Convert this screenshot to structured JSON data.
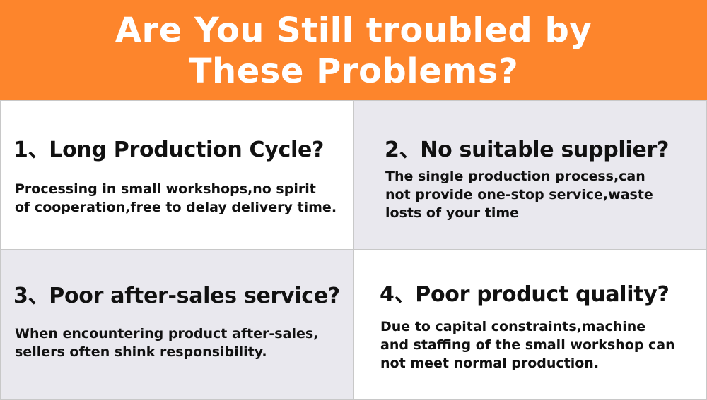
{
  "header": {
    "title": "Are You Still troubled by\nThese Problems?"
  },
  "colors": {
    "banner": "#fd852c",
    "cell_light": "#ffffff",
    "cell_gray": "#e9e8ee"
  },
  "problems": [
    {
      "title": "1、Long Production Cycle?",
      "text": "Processing in small workshops,no spirit\nof cooperation,free to delay delivery time."
    },
    {
      "title": "2、No suitable supplier?",
      "text": "The single production process,can\nnot provide one-stop service,waste\nlosts of your time"
    },
    {
      "title": "3、Poor after-sales service?",
      "text": "When encountering product after-sales,\nsellers often shink responsibility."
    },
    {
      "title": "4、Poor product quality?",
      "text": "Due to capital constraints,machine\nand staffing of the small workshop can\nnot meet normal production."
    }
  ]
}
